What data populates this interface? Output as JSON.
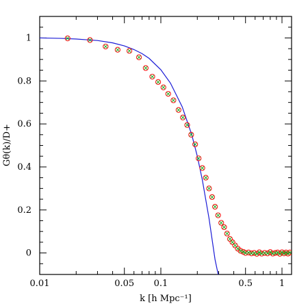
{
  "chart_data": {
    "type": "scatter",
    "xscale": "log",
    "xlim": [
      0.01,
      1.2
    ],
    "ylim": [
      -0.1,
      1.1
    ],
    "xlabel": "k [h Mpc⁻¹]",
    "ylabel": "Gθ(k)/D+",
    "x_ticks": [
      {
        "value": 0.01,
        "label": "0.01"
      },
      {
        "value": 0.05,
        "label": "0.05"
      },
      {
        "value": 0.1,
        "label": "0.1"
      },
      {
        "value": 0.5,
        "label": "0.5"
      },
      {
        "value": 1,
        "label": "1"
      }
    ],
    "y_ticks": [
      {
        "value": 0,
        "label": "0"
      },
      {
        "value": 0.2,
        "label": "0.2"
      },
      {
        "value": 0.4,
        "label": "0.4"
      },
      {
        "value": 0.6,
        "label": "0.6"
      },
      {
        "value": 0.8,
        "label": "0.8"
      },
      {
        "value": 1,
        "label": "1"
      }
    ],
    "grid": false,
    "series": [
      {
        "kind": "line",
        "color": "#1a1ad6",
        "x": [
          0.01,
          0.015,
          0.02,
          0.03,
          0.04,
          0.05,
          0.06,
          0.07,
          0.08,
          0.1,
          0.12,
          0.15,
          0.18,
          0.2,
          0.22,
          0.25,
          0.28,
          0.3
        ],
        "y": [
          1.0,
          0.998,
          0.995,
          0.988,
          0.977,
          0.963,
          0.946,
          0.927,
          0.905,
          0.852,
          0.79,
          0.68,
          0.55,
          0.45,
          0.34,
          0.16,
          -0.03,
          -0.11
        ]
      },
      {
        "kind": "markers-open-circle",
        "color": "#ff1a1a",
        "x": [
          0.017,
          0.026,
          0.035,
          0.044,
          0.055,
          0.066,
          0.075,
          0.085,
          0.095,
          0.105,
          0.115,
          0.127,
          0.14,
          0.152,
          0.165,
          0.178,
          0.192,
          0.205,
          0.22,
          0.235,
          0.25,
          0.265,
          0.28,
          0.297,
          0.315,
          0.333,
          0.352,
          0.372,
          0.39,
          0.41,
          0.432,
          0.455,
          0.48,
          0.5,
          0.53,
          0.56,
          0.59,
          0.62,
          0.65,
          0.68,
          0.72,
          0.76,
          0.8,
          0.84,
          0.88,
          0.92,
          0.96,
          1.0,
          1.04,
          1.08,
          1.12,
          1.16
        ],
        "y": [
          0.998,
          0.99,
          0.96,
          0.945,
          0.94,
          0.91,
          0.86,
          0.82,
          0.795,
          0.77,
          0.74,
          0.71,
          0.665,
          0.63,
          0.595,
          0.55,
          0.505,
          0.44,
          0.395,
          0.35,
          0.3,
          0.26,
          0.215,
          0.175,
          0.14,
          0.12,
          0.09,
          0.065,
          0.05,
          0.035,
          0.02,
          0.01,
          0.005,
          0.0,
          0.002,
          -0.002,
          0.0,
          -0.004,
          0.003,
          -0.003,
          0.0,
          -0.002,
          0.004,
          -0.003,
          0.0,
          0.002,
          -0.004,
          0.003,
          -0.002,
          0.002,
          -0.003,
          0.002
        ]
      },
      {
        "kind": "markers-cross",
        "color": "#22aa22",
        "x": [
          0.017,
          0.026,
          0.035,
          0.044,
          0.055,
          0.066,
          0.075,
          0.085,
          0.095,
          0.105,
          0.115,
          0.127,
          0.14,
          0.152,
          0.165,
          0.178,
          0.192,
          0.205,
          0.22,
          0.235,
          0.25,
          0.265,
          0.28,
          0.297,
          0.315,
          0.333,
          0.352,
          0.372,
          0.39,
          0.41,
          0.432,
          0.455,
          0.48,
          0.5,
          0.53,
          0.56,
          0.59,
          0.62,
          0.65,
          0.68,
          0.72,
          0.76,
          0.8,
          0.84,
          0.88,
          0.92,
          0.96,
          1.0,
          1.04,
          1.08,
          1.12,
          1.16
        ],
        "y": [
          0.998,
          0.99,
          0.96,
          0.945,
          0.94,
          0.91,
          0.86,
          0.82,
          0.795,
          0.77,
          0.74,
          0.71,
          0.665,
          0.63,
          0.595,
          0.55,
          0.505,
          0.44,
          0.395,
          0.35,
          0.3,
          0.26,
          0.215,
          0.175,
          0.14,
          0.12,
          0.09,
          0.065,
          0.05,
          0.035,
          0.02,
          0.01,
          0.005,
          0.0,
          0.002,
          -0.002,
          0.0,
          -0.004,
          0.003,
          -0.003,
          0.0,
          -0.002,
          0.004,
          -0.003,
          0.0,
          0.002,
          -0.004,
          0.003,
          -0.002,
          0.002,
          -0.003,
          0.002
        ]
      }
    ]
  }
}
